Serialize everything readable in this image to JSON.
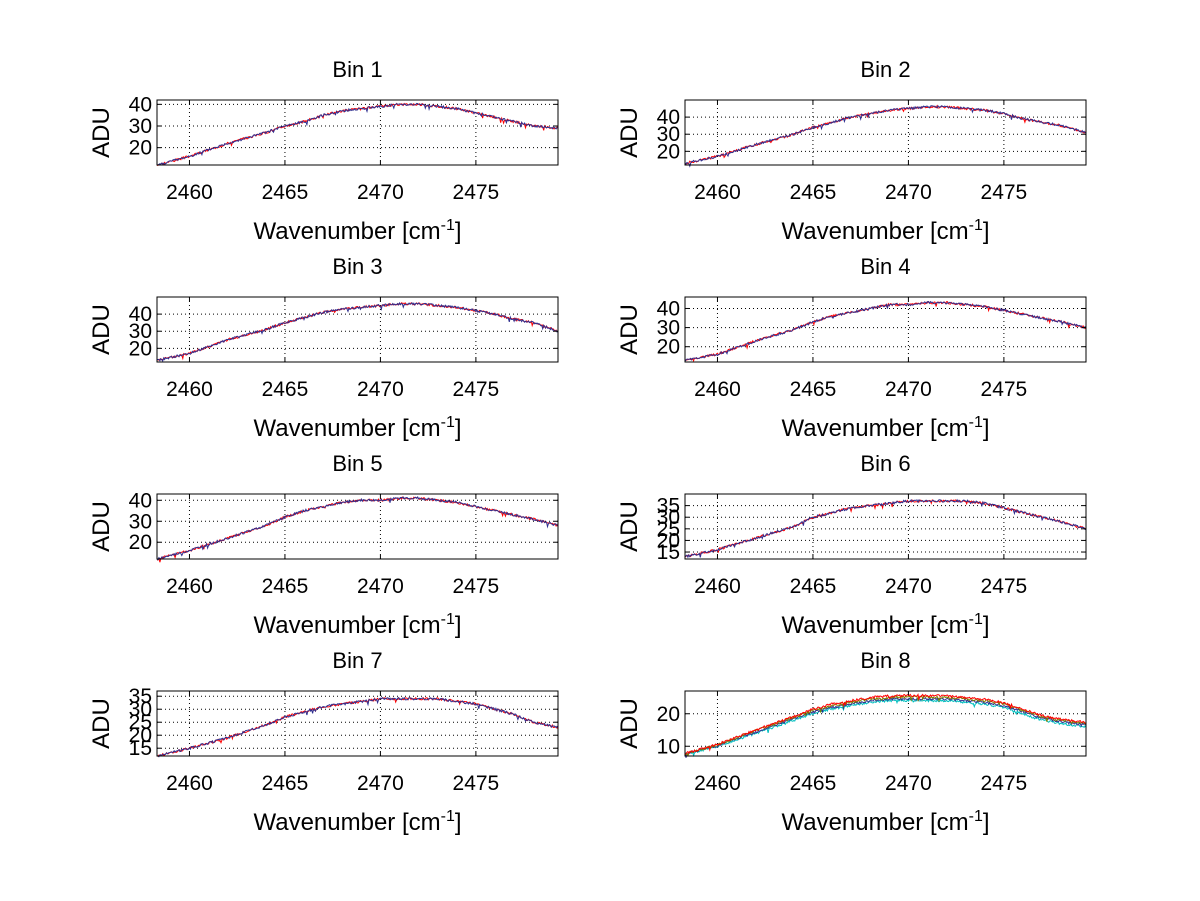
{
  "chart_data": [
    {
      "type": "line",
      "title": "Bin 1",
      "xlabel": "Wavenumber [cm",
      "xlabel_sup": "-1",
      "xlabel_end": "]",
      "ylabel": "ADU",
      "xlim": [
        2458.3,
        2479.3
      ],
      "ylim": [
        12,
        42
      ],
      "xticks": [
        2460,
        2465,
        2470,
        2475
      ],
      "yticks": [
        20,
        30,
        40
      ],
      "grid": true,
      "series": [
        {
          "name": "series-1",
          "color": "#ff0000",
          "x": [
            2458.3,
            2460,
            2462,
            2464,
            2465,
            2466,
            2467,
            2468,
            2469,
            2470,
            2471,
            2472,
            2473,
            2474,
            2475,
            2476,
            2477,
            2478,
            2479.3
          ],
          "values": [
            12,
            16,
            22,
            27,
            30,
            32,
            35,
            37,
            38,
            39,
            40,
            40,
            39,
            38,
            36,
            34,
            32,
            30,
            29
          ]
        },
        {
          "name": "series-2",
          "color": "#2f2f8f",
          "x": [
            2458.3,
            2460,
            2462,
            2464,
            2465,
            2466,
            2467,
            2468,
            2469,
            2470,
            2471,
            2472,
            2473,
            2474,
            2475,
            2476,
            2477,
            2478,
            2479.3
          ],
          "values": [
            12,
            16,
            22,
            27,
            30,
            32,
            35,
            37,
            38,
            39,
            40,
            40,
            39,
            38,
            36,
            34,
            32,
            30,
            29
          ]
        }
      ]
    },
    {
      "type": "line",
      "title": "Bin 2",
      "xlabel": "Wavenumber [cm",
      "xlabel_sup": "-1",
      "xlabel_end": "]",
      "ylabel": "ADU",
      "xlim": [
        2458.3,
        2479.3
      ],
      "ylim": [
        12,
        50
      ],
      "xticks": [
        2460,
        2465,
        2470,
        2475
      ],
      "yticks": [
        20,
        30,
        40
      ],
      "grid": true,
      "series": [
        {
          "name": "series-1",
          "color": "#ff0000",
          "x": [
            2458.3,
            2460,
            2462,
            2464,
            2465,
            2466,
            2467,
            2468,
            2469,
            2470,
            2471,
            2472,
            2473,
            2474,
            2475,
            2476,
            2477,
            2478,
            2479.3
          ],
          "values": [
            13,
            17,
            24,
            30,
            34,
            37,
            40,
            42,
            44,
            45,
            46,
            46,
            45,
            44,
            42,
            39,
            37,
            35,
            31
          ]
        },
        {
          "name": "series-2",
          "color": "#2f2f8f",
          "x": [
            2458.3,
            2460,
            2462,
            2464,
            2465,
            2466,
            2467,
            2468,
            2469,
            2470,
            2471,
            2472,
            2473,
            2474,
            2475,
            2476,
            2477,
            2478,
            2479.3
          ],
          "values": [
            13,
            17,
            24,
            30,
            34,
            37,
            40,
            42,
            44,
            45,
            46,
            46,
            45,
            44,
            42,
            39,
            37,
            35,
            31
          ]
        }
      ]
    },
    {
      "type": "line",
      "title": "Bin 3",
      "xlabel": "Wavenumber [cm",
      "xlabel_sup": "-1",
      "xlabel_end": "]",
      "ylabel": "ADU",
      "xlim": [
        2458.3,
        2479.3
      ],
      "ylim": [
        12,
        50
      ],
      "xticks": [
        2460,
        2465,
        2470,
        2475
      ],
      "yticks": [
        20,
        30,
        40
      ],
      "grid": true,
      "series": [
        {
          "name": "series-1",
          "color": "#ff0000",
          "x": [
            2458.3,
            2460,
            2462,
            2464,
            2465,
            2466,
            2467,
            2468,
            2469,
            2470,
            2471,
            2472,
            2473,
            2474,
            2475,
            2476,
            2477,
            2478,
            2479.3
          ],
          "values": [
            13,
            17,
            25,
            31,
            35,
            38,
            41,
            43,
            44,
            45,
            46,
            46,
            45,
            44,
            42,
            40,
            37,
            35,
            30
          ]
        },
        {
          "name": "series-2",
          "color": "#2f2f8f",
          "x": [
            2458.3,
            2460,
            2462,
            2464,
            2465,
            2466,
            2467,
            2468,
            2469,
            2470,
            2471,
            2472,
            2473,
            2474,
            2475,
            2476,
            2477,
            2478,
            2479.3
          ],
          "values": [
            13,
            17,
            25,
            31,
            35,
            38,
            41,
            43,
            44,
            45,
            46,
            46,
            45,
            44,
            42,
            40,
            37,
            35,
            30
          ]
        }
      ]
    },
    {
      "type": "line",
      "title": "Bin 4",
      "xlabel": "Wavenumber [cm",
      "xlabel_sup": "-1",
      "xlabel_end": "]",
      "ylabel": "ADU",
      "xlim": [
        2458.3,
        2479.3
      ],
      "ylim": [
        12,
        46
      ],
      "xticks": [
        2460,
        2465,
        2470,
        2475
      ],
      "yticks": [
        20,
        30,
        40
      ],
      "grid": true,
      "series": [
        {
          "name": "series-1",
          "color": "#ff0000",
          "x": [
            2458.3,
            2460,
            2462,
            2464,
            2465,
            2466,
            2467,
            2468,
            2469,
            2470,
            2471,
            2472,
            2473,
            2474,
            2475,
            2476,
            2477,
            2478,
            2479.3
          ],
          "values": [
            13,
            16,
            23,
            29,
            33,
            36,
            38,
            40,
            42,
            42,
            43,
            43,
            42,
            41,
            39,
            37,
            35,
            33,
            30
          ]
        },
        {
          "name": "series-2",
          "color": "#2f2f8f",
          "x": [
            2458.3,
            2460,
            2462,
            2464,
            2465,
            2466,
            2467,
            2468,
            2469,
            2470,
            2471,
            2472,
            2473,
            2474,
            2475,
            2476,
            2477,
            2478,
            2479.3
          ],
          "values": [
            13,
            16,
            23,
            29,
            33,
            36,
            38,
            40,
            42,
            42,
            43,
            43,
            42,
            41,
            39,
            37,
            35,
            33,
            30
          ]
        }
      ]
    },
    {
      "type": "line",
      "title": "Bin 5",
      "xlabel": "Wavenumber [cm",
      "xlabel_sup": "-1",
      "xlabel_end": "]",
      "ylabel": "ADU",
      "xlim": [
        2458.3,
        2479.3
      ],
      "ylim": [
        12,
        43
      ],
      "xticks": [
        2460,
        2465,
        2470,
        2475
      ],
      "yticks": [
        20,
        30,
        40
      ],
      "grid": true,
      "series": [
        {
          "name": "series-1",
          "color": "#ff0000",
          "x": [
            2458.3,
            2460,
            2462,
            2464,
            2465,
            2466,
            2467,
            2468,
            2469,
            2470,
            2471,
            2472,
            2473,
            2474,
            2475,
            2476,
            2477,
            2478,
            2479.3
          ],
          "values": [
            12,
            16,
            22,
            28,
            32,
            35,
            37,
            39,
            40,
            40,
            41,
            41,
            40,
            39,
            37,
            35,
            33,
            31,
            28
          ]
        },
        {
          "name": "series-2",
          "color": "#2f2f8f",
          "x": [
            2458.3,
            2460,
            2462,
            2464,
            2465,
            2466,
            2467,
            2468,
            2469,
            2470,
            2471,
            2472,
            2473,
            2474,
            2475,
            2476,
            2477,
            2478,
            2479.3
          ],
          "values": [
            12,
            16,
            22,
            28,
            32,
            35,
            37,
            39,
            40,
            40,
            41,
            41,
            40,
            39,
            37,
            35,
            33,
            31,
            28
          ]
        }
      ]
    },
    {
      "type": "line",
      "title": "Bin 6",
      "xlabel": "Wavenumber [cm",
      "xlabel_sup": "-1",
      "xlabel_end": "]",
      "ylabel": "ADU",
      "xlim": [
        2458.3,
        2479.3
      ],
      "ylim": [
        12,
        40
      ],
      "xticks": [
        2460,
        2465,
        2470,
        2475
      ],
      "yticks": [
        15,
        20,
        25,
        30,
        35
      ],
      "grid": true,
      "series": [
        {
          "name": "series-1",
          "color": "#ff0000",
          "x": [
            2458.3,
            2460,
            2462,
            2464,
            2465,
            2466,
            2467,
            2468,
            2469,
            2470,
            2471,
            2472,
            2473,
            2474,
            2475,
            2476,
            2477,
            2478,
            2479.3
          ],
          "values": [
            13,
            16,
            21,
            26,
            30,
            32,
            34,
            35,
            36,
            37,
            37,
            37,
            37,
            36,
            34,
            32,
            30,
            28,
            25
          ]
        },
        {
          "name": "series-2",
          "color": "#2f2f8f",
          "x": [
            2458.3,
            2460,
            2462,
            2464,
            2465,
            2466,
            2467,
            2468,
            2469,
            2470,
            2471,
            2472,
            2473,
            2474,
            2475,
            2476,
            2477,
            2478,
            2479.3
          ],
          "values": [
            13,
            16,
            21,
            26,
            30,
            32,
            34,
            35,
            36,
            37,
            37,
            37,
            37,
            36,
            34,
            32,
            30,
            28,
            25
          ]
        }
      ]
    },
    {
      "type": "line",
      "title": "Bin 7",
      "xlabel": "Wavenumber [cm",
      "xlabel_sup": "-1",
      "xlabel_end": "]",
      "ylabel": "ADU",
      "xlim": [
        2458.3,
        2479.3
      ],
      "ylim": [
        12,
        37
      ],
      "xticks": [
        2460,
        2465,
        2470,
        2475
      ],
      "yticks": [
        15,
        20,
        25,
        30,
        35
      ],
      "grid": true,
      "series": [
        {
          "name": "series-1",
          "color": "#ff0000",
          "x": [
            2458.3,
            2460,
            2462,
            2464,
            2465,
            2466,
            2467,
            2468,
            2469,
            2470,
            2471,
            2472,
            2473,
            2474,
            2475,
            2476,
            2477,
            2478,
            2479.3
          ],
          "values": [
            12,
            15,
            19,
            24,
            27,
            29,
            31,
            32,
            33,
            34,
            34,
            34,
            34,
            33,
            32,
            30,
            28,
            25,
            23
          ]
        },
        {
          "name": "series-2",
          "color": "#2f2f8f",
          "x": [
            2458.3,
            2460,
            2462,
            2464,
            2465,
            2466,
            2467,
            2468,
            2469,
            2470,
            2471,
            2472,
            2473,
            2474,
            2475,
            2476,
            2477,
            2478,
            2479.3
          ],
          "values": [
            12,
            15,
            19,
            24,
            27,
            29,
            31,
            32,
            33,
            34,
            34,
            34,
            34,
            33,
            32,
            30,
            28,
            25,
            23
          ]
        }
      ]
    },
    {
      "type": "line",
      "title": "Bin 8",
      "xlabel": "Wavenumber [cm",
      "xlabel_sup": "-1",
      "xlabel_end": "]",
      "ylabel": "ADU",
      "xlim": [
        2458.3,
        2479.3
      ],
      "ylim": [
        7,
        27
      ],
      "xticks": [
        2460,
        2465,
        2470,
        2475
      ],
      "yticks": [
        10,
        20
      ],
      "grid": true,
      "series": [
        {
          "name": "series-1",
          "color": "#00bfbf",
          "x": [
            2458.3,
            2460,
            2462,
            2464,
            2465,
            2466,
            2467,
            2468,
            2469,
            2470,
            2471,
            2472,
            2473,
            2474,
            2475,
            2476,
            2477,
            2478,
            2479.3
          ],
          "values": [
            7.5,
            10,
            14,
            18,
            20,
            21.5,
            22.5,
            23.5,
            24,
            24,
            24,
            24,
            23.5,
            23,
            22,
            20,
            18,
            17,
            16
          ]
        },
        {
          "name": "series-2",
          "color": "#2f2f8f",
          "x": [
            2458.3,
            2460,
            2462,
            2464,
            2465,
            2466,
            2467,
            2468,
            2469,
            2470,
            2471,
            2472,
            2473,
            2474,
            2475,
            2476,
            2477,
            2478,
            2479.3
          ],
          "values": [
            7.6,
            10.2,
            14.4,
            18.5,
            20.5,
            22,
            23,
            24,
            24.5,
            24.6,
            24.6,
            24.5,
            24.1,
            23.5,
            22.5,
            20.6,
            18.6,
            17.5,
            16.6
          ]
        },
        {
          "name": "series-3",
          "color": "#7f7f00",
          "x": [
            2458.3,
            2460,
            2462,
            2464,
            2465,
            2466,
            2467,
            2468,
            2469,
            2470,
            2471,
            2472,
            2473,
            2474,
            2475,
            2476,
            2477,
            2478,
            2479.3
          ],
          "values": [
            7.7,
            10.4,
            14.8,
            18.9,
            21,
            22.5,
            23.6,
            24.5,
            25,
            25.2,
            25.2,
            25,
            24.6,
            24,
            23,
            21,
            19,
            18,
            17
          ]
        },
        {
          "name": "series-4",
          "color": "#ff0000",
          "x": [
            2458.3,
            2460,
            2462,
            2464,
            2465,
            2466,
            2467,
            2468,
            2469,
            2470,
            2471,
            2472,
            2473,
            2474,
            2475,
            2476,
            2477,
            2478,
            2479.3
          ],
          "values": [
            7.8,
            10.6,
            15,
            19.2,
            21.4,
            23,
            24,
            25,
            25.5,
            25.6,
            25.6,
            25.5,
            25,
            24.4,
            23.4,
            21.4,
            19.4,
            18.3,
            17.4
          ]
        }
      ]
    }
  ]
}
